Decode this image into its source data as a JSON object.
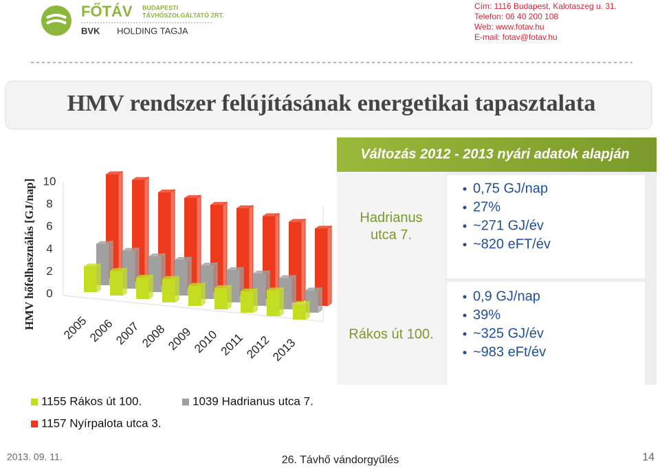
{
  "header": {
    "brand": "FŐTÁV",
    "brand_sub1": "BUDAPESTI",
    "brand_sub2": "TÁVHŐSZOLGÁLTATÓ ZRT.",
    "holding1": "BVK",
    "holding2": "HOLDING TAGJA",
    "contact": [
      "Cím: 1116 Budapest, Kalotaszeg u. 31.",
      "Telefon: 06 40 200 108",
      "Web: www.fotav.hu",
      "E-mail: fotav@fotav.hu"
    ]
  },
  "title": "HMV rendszer felújításának energetikai tapasztalata",
  "chart_data": {
    "type": "bar3d",
    "ylabel": "HMV hőfelhasználás [GJ/nap]",
    "categories": [
      "2005",
      "2006",
      "2007",
      "2008",
      "2009",
      "2010",
      "2011",
      "2012",
      "2013"
    ],
    "series": [
      {
        "name": "1155 Rákos út 100.",
        "color": "#c5dd20",
        "values": [
          2.3,
          2.2,
          1.9,
          2.1,
          1.8,
          1.9,
          1.9,
          2.3,
          1.4
        ]
      },
      {
        "name": "1039 Hadrianus utca 7.",
        "color": "#a0a0a0",
        "values": [
          3.7,
          3.4,
          3.2,
          3.2,
          3.0,
          2.9,
          2.9,
          2.8,
          2.0
        ]
      },
      {
        "name": "1157 Nyírpalota utca 3.",
        "color": "#ee3a1c",
        "values": [
          9.3,
          9.1,
          8.3,
          8.1,
          7.8,
          7.8,
          7.4,
          7.2,
          6.9
        ]
      }
    ],
    "ylim": [
      0,
      10
    ],
    "yticks": [
      0,
      2,
      4,
      6,
      8,
      10
    ]
  },
  "panel": {
    "title": "Változás 2012 - 2013 nyári adatok alapján",
    "rows": [
      {
        "label": "Hadrianus utca 7.",
        "items": [
          "0,75 GJ/nap",
          "27%",
          "~271 GJ/év",
          "~820 eFT/év"
        ]
      },
      {
        "label": "Rákos út 100.",
        "items": [
          "0,9 GJ/nap",
          "39%",
          "~325 GJ/év",
          "~983 eFt/év"
        ]
      }
    ]
  },
  "footer": {
    "date": "2013. 09. 11.",
    "event": "26. Távhő vándorgyűlés",
    "page": "14"
  }
}
